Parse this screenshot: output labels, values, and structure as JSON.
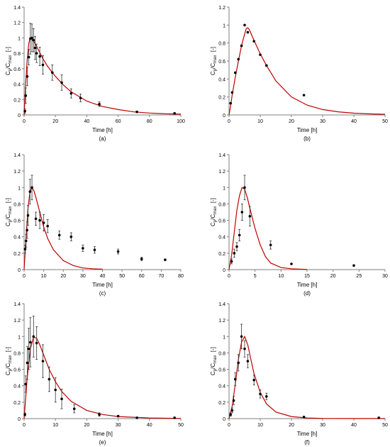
{
  "figure": {
    "panel_count": 6
  },
  "chart_data": [
    {
      "type": "scatter",
      "panel_label": "(a)",
      "xlabel": "Time [h]",
      "ylabel_main": "C",
      "ylabel_sub1": "p",
      "ylabel_mid": "/C",
      "ylabel_sub2": "max",
      "ylabel_unit": "[-]",
      "xlim": [
        0,
        100
      ],
      "ylim": [
        0,
        1.4
      ],
      "x_ticks": [
        "0",
        "20",
        "40",
        "60",
        "80",
        "100"
      ],
      "y_ticks": [
        "0",
        "0.2",
        "0.4",
        "0.6",
        "0.8",
        "1",
        "1.2",
        "1.4"
      ],
      "grid": false,
      "series": [
        {
          "kind": "observed",
          "x": [
            0.5,
            1,
            2,
            3,
            4,
            5,
            6,
            7,
            8,
            10,
            12,
            18,
            24,
            30,
            36,
            48,
            72,
            96
          ],
          "y": [
            0.05,
            0.25,
            0.5,
            0.75,
            0.99,
            1.0,
            0.97,
            0.87,
            0.8,
            0.76,
            0.65,
            0.55,
            0.42,
            0.28,
            0.22,
            0.14,
            0.04,
            0.02
          ],
          "err": [
            0.03,
            0.1,
            0.12,
            0.1,
            0.2,
            0.18,
            0.15,
            0.15,
            0.12,
            0.12,
            0.12,
            0.1,
            0.1,
            0.06,
            0.05,
            0.03,
            0.01,
            0.01
          ]
        },
        {
          "kind": "model",
          "x": [
            0,
            0.5,
            1,
            2,
            3,
            4,
            5,
            6,
            8,
            10,
            12,
            15,
            20,
            25,
            30,
            40,
            50,
            60,
            70,
            80,
            90,
            100
          ],
          "y": [
            0,
            0.2,
            0.4,
            0.72,
            0.93,
            1.0,
            0.99,
            0.96,
            0.89,
            0.81,
            0.73,
            0.63,
            0.5,
            0.39,
            0.3,
            0.18,
            0.11,
            0.07,
            0.04,
            0.025,
            0.015,
            0.01
          ]
        }
      ]
    },
    {
      "type": "scatter",
      "panel_label": "(b)",
      "xlabel": "Time [h]",
      "ylabel_main": "C",
      "ylabel_sub1": "p",
      "ylabel_mid": "/C",
      "ylabel_sub2": "max",
      "ylabel_unit": "[-]",
      "xlim": [
        0,
        50
      ],
      "ylim": [
        0,
        1.2
      ],
      "x_ticks": [
        "0",
        "10",
        "20",
        "30",
        "40",
        "50"
      ],
      "y_ticks": [
        "0",
        "0.2",
        "0.4",
        "0.6",
        "0.8",
        "1",
        "1.2"
      ],
      "grid": false,
      "series": [
        {
          "kind": "observed",
          "x": [
            0.5,
            1,
            2,
            3,
            4,
            5,
            6,
            8,
            10,
            12,
            24
          ],
          "y": [
            0.13,
            0.25,
            0.47,
            0.62,
            0.77,
            1.0,
            0.92,
            0.82,
            0.67,
            0.55,
            0.22
          ],
          "err": [
            0,
            0,
            0,
            0,
            0,
            0,
            0,
            0,
            0,
            0,
            0
          ]
        },
        {
          "kind": "model",
          "x": [
            0,
            0.5,
            1,
            2,
            3,
            4,
            5,
            5.5,
            6,
            6.5,
            8,
            10,
            12,
            15,
            20,
            25,
            30,
            35,
            40,
            45,
            50
          ],
          "y": [
            0,
            0.1,
            0.22,
            0.42,
            0.6,
            0.77,
            0.9,
            0.96,
            0.97,
            0.95,
            0.83,
            0.68,
            0.55,
            0.38,
            0.2,
            0.11,
            0.06,
            0.035,
            0.02,
            0.012,
            0.007
          ]
        }
      ]
    },
    {
      "type": "scatter",
      "panel_label": "(c)",
      "xlabel": "Time [h]",
      "ylabel_main": "C",
      "ylabel_sub1": "p",
      "ylabel_mid": "/C",
      "ylabel_sub2": "max",
      "ylabel_unit": "[-]",
      "xlim": [
        0,
        80
      ],
      "ylim": [
        0,
        1.4
      ],
      "x_ticks": [
        "0",
        "10",
        "20",
        "30",
        "40",
        "50",
        "60",
        "70",
        "80"
      ],
      "y_ticks": [
        "0",
        "0.2",
        "0.4",
        "0.6",
        "0.8",
        "1",
        "1.2",
        "1.4"
      ],
      "grid": false,
      "series": [
        {
          "kind": "observed",
          "x": [
            0.5,
            1,
            1.5,
            2,
            3,
            4,
            6,
            8,
            10,
            12,
            18,
            24,
            30,
            36,
            48,
            60,
            72
          ],
          "y": [
            0.25,
            0.35,
            0.48,
            0.66,
            0.95,
            1.0,
            0.62,
            0.6,
            0.57,
            0.53,
            0.42,
            0.4,
            0.26,
            0.24,
            0.22,
            0.13,
            0.12
          ],
          "err": [
            0.05,
            0.08,
            0.1,
            0.12,
            0.15,
            0.15,
            0.08,
            0.1,
            0.1,
            0.08,
            0.05,
            0.05,
            0.04,
            0.04,
            0.03,
            0.02,
            0.01
          ]
        },
        {
          "kind": "model",
          "x": [
            0,
            1,
            2,
            3,
            4,
            5,
            6,
            8,
            10,
            12,
            15,
            20,
            25,
            30,
            35,
            40
          ],
          "y": [
            0,
            0.4,
            0.75,
            0.95,
            1.0,
            0.96,
            0.88,
            0.7,
            0.52,
            0.38,
            0.24,
            0.11,
            0.05,
            0.02,
            0.01,
            0.005
          ]
        }
      ]
    },
    {
      "type": "scatter",
      "panel_label": "(d)",
      "xlabel": "Time [h]",
      "ylabel_main": "C",
      "ylabel_sub1": "p",
      "ylabel_mid": "/C",
      "ylabel_sub2": "max",
      "ylabel_unit": "[-]",
      "xlim": [
        0,
        30
      ],
      "ylim": [
        0,
        1.4
      ],
      "x_ticks": [
        "0",
        "5",
        "10",
        "15",
        "20",
        "25",
        "30"
      ],
      "y_ticks": [
        "0",
        "0.2",
        "0.4",
        "0.6",
        "0.8",
        "1",
        "1.2",
        "1.4"
      ],
      "grid": false,
      "series": [
        {
          "kind": "observed",
          "x": [
            0.5,
            1,
            1.5,
            2,
            2.5,
            3,
            4,
            8,
            12,
            24
          ],
          "y": [
            0.1,
            0.2,
            0.28,
            0.42,
            0.7,
            1.0,
            0.65,
            0.3,
            0.07,
            0.05
          ],
          "err": [
            0.03,
            0.05,
            0.05,
            0.07,
            0.1,
            0.15,
            0.12,
            0.05,
            0,
            0
          ]
        },
        {
          "kind": "model",
          "x": [
            0,
            0.5,
            1,
            1.5,
            2,
            2.5,
            3,
            3.5,
            4,
            5,
            6,
            7,
            8,
            10,
            12,
            15
          ],
          "y": [
            0,
            0.18,
            0.45,
            0.72,
            0.9,
            1.0,
            0.98,
            0.88,
            0.75,
            0.5,
            0.3,
            0.16,
            0.08,
            0.025,
            0.01,
            0.003
          ]
        }
      ]
    },
    {
      "type": "scatter",
      "panel_label": "(e)",
      "xlabel": "Time [h]",
      "ylabel_main": "C",
      "ylabel_sub1": "p",
      "ylabel_mid": "/C",
      "ylabel_sub2": "max",
      "ylabel_unit": "[-]",
      "xlim": [
        0,
        50
      ],
      "ylim": [
        0,
        1.4
      ],
      "x_ticks": [
        "0",
        "10",
        "20",
        "30",
        "40",
        "50"
      ],
      "y_ticks": [
        "0",
        "0.2",
        "0.4",
        "0.6",
        "0.8",
        "1",
        "1.2",
        "1.4"
      ],
      "grid": false,
      "series": [
        {
          "kind": "observed",
          "x": [
            0.25,
            0.5,
            1,
            1.5,
            2,
            3,
            4,
            6,
            8,
            10,
            12,
            16,
            24,
            30,
            36,
            48
          ],
          "y": [
            0.05,
            0.42,
            0.68,
            0.85,
            0.93,
            1.0,
            0.92,
            0.7,
            0.48,
            0.35,
            0.24,
            0.12,
            0.05,
            0.03,
            0.01,
            0.01
          ],
          "err": [
            0.02,
            0.1,
            0.2,
            0.25,
            0.3,
            0.25,
            0.2,
            0.2,
            0.15,
            0.15,
            0.12,
            0.05,
            0.02,
            0.01,
            0,
            0
          ]
        },
        {
          "kind": "model",
          "x": [
            0,
            0.5,
            1,
            2,
            3,
            4,
            5,
            6,
            8,
            10,
            12,
            15,
            20,
            25,
            30,
            40,
            50
          ],
          "y": [
            0,
            0.25,
            0.5,
            0.85,
            0.99,
            0.98,
            0.9,
            0.8,
            0.6,
            0.45,
            0.33,
            0.21,
            0.1,
            0.05,
            0.025,
            0.008,
            0.003
          ]
        }
      ]
    },
    {
      "type": "scatter",
      "panel_label": "(f)",
      "xlabel": "Time [h]",
      "ylabel_main": "C",
      "ylabel_sub1": "p",
      "ylabel_mid": "/C",
      "ylabel_sub2": "max",
      "ylabel_unit": "[-]",
      "xlim": [
        0,
        50
      ],
      "ylim": [
        0,
        1.4
      ],
      "x_ticks": [
        "0",
        "10",
        "20",
        "30",
        "40",
        "50"
      ],
      "y_ticks": [
        "0",
        "0.2",
        "0.4",
        "0.6",
        "0.8",
        "1",
        "1.2",
        "1.4"
      ],
      "grid": false,
      "series": [
        {
          "kind": "observed",
          "x": [
            0.5,
            1,
            1.5,
            2,
            3,
            4,
            5,
            6,
            8,
            10,
            12,
            24,
            48
          ],
          "y": [
            0.05,
            0.1,
            0.22,
            0.48,
            0.68,
            1.0,
            0.85,
            0.7,
            0.47,
            0.3,
            0.27,
            0.02,
            0.01
          ],
          "err": [
            0.02,
            0.03,
            0.05,
            0.08,
            0.1,
            0.15,
            0.1,
            0.08,
            0.06,
            0.05,
            0.04,
            0,
            0
          ]
        },
        {
          "kind": "model",
          "x": [
            0,
            1,
            2,
            3,
            4,
            5,
            6,
            7,
            8,
            10,
            12,
            15,
            20,
            25,
            30,
            40,
            50
          ],
          "y": [
            0,
            0.15,
            0.42,
            0.72,
            0.93,
            1.0,
            0.9,
            0.72,
            0.55,
            0.32,
            0.18,
            0.08,
            0.025,
            0.008,
            0.003,
            0.001,
            0.0005
          ]
        }
      ]
    }
  ]
}
